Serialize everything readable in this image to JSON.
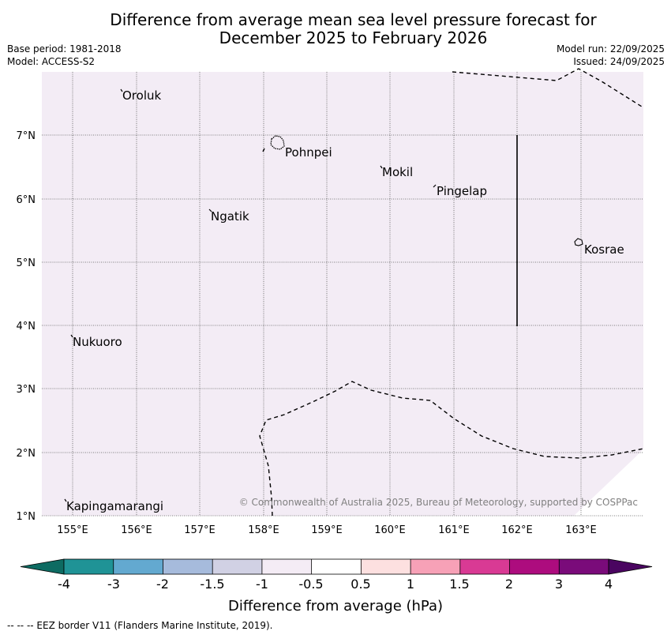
{
  "title": {
    "line1": "Difference from average mean sea level pressure forecast for",
    "line2": "December 2025 to February 2026"
  },
  "meta": {
    "base_period": "Base period: 1981-2018",
    "model": "Model: ACCESS-S2",
    "model_run": "Model run: 22/09/2025",
    "issued": "Issued: 24/09/2025"
  },
  "map": {
    "background_color": "#f3ecf5",
    "lon_ticks": [
      "155°E",
      "156°E",
      "157°E",
      "158°E",
      "159°E",
      "160°E",
      "161°E",
      "162°E",
      "163°E"
    ],
    "lat_ticks": [
      "7°N",
      "6°N",
      "5°N",
      "4°N",
      "3°N",
      "2°N",
      "1°N"
    ],
    "places": [
      {
        "name": "Oroluk"
      },
      {
        "name": "Pohnpei"
      },
      {
        "name": "Mokil"
      },
      {
        "name": "Pingelap"
      },
      {
        "name": "Ngatik"
      },
      {
        "name": "Kosrae"
      },
      {
        "name": "Nukuoro"
      },
      {
        "name": "Kapingamarangi"
      }
    ],
    "copyright": "© Commonwealth of Australia 2025, Bureau of Meteorology, supported by COSPPac"
  },
  "colorbar": {
    "label": "Difference from average (hPa)",
    "ticks": [
      "-4",
      "-3",
      "-2",
      "-1.5",
      "-1",
      "-0.5",
      "0.5",
      "1",
      "1.5",
      "2",
      "3",
      "4"
    ],
    "colors": [
      "#1f9396",
      "#63a9d0",
      "#a6bbdc",
      "#d1d1e4",
      "#f4ecf5",
      "#ffffff",
      "#fde0e0",
      "#f7a1b7",
      "#d93a94",
      "#ad0c7e",
      "#7a0b7a"
    ],
    "low_extend_color": "#0d6b62",
    "high_extend_color": "#4a0560"
  },
  "footnote": "--  --  -- EEZ border V11 (Flanders Marine Institute, 2019)."
}
